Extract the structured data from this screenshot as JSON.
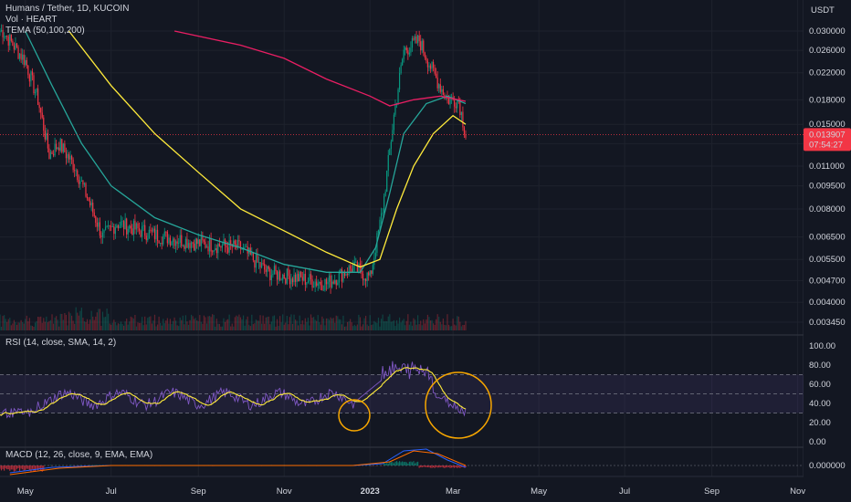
{
  "legend": {
    "symbol": "Humans / Tether, 1D, KUCOIN",
    "volume": "Vol · HEART",
    "tema": "TEMA (50,100,200)",
    "rsi": "RSI (14, close, SMA, 14, 2)",
    "macd": "MACD (12, 26, close, 9, EMA, EMA)"
  },
  "price_badge": {
    "price": "0.013907",
    "countdown": "07:54:27",
    "color": "#f23645"
  },
  "colors": {
    "background": "#131722",
    "up": "#089981",
    "down": "#f23645",
    "tema50": "#26a69a",
    "tema100": "#ffeb3b",
    "tema200": "#e91e63",
    "rsi_line": "#7e57c2",
    "rsi_ma": "#ffeb3b",
    "circle": "#f7a600"
  },
  "chart_data": [
    {
      "type": "candlestick",
      "quote": "USDT",
      "y_ticks": [
        "0.030000",
        "0.026000",
        "0.022000",
        "0.018000",
        "0.015000",
        "0.013000",
        "0.011000",
        "0.009500",
        "0.008000",
        "0.006500",
        "0.005500",
        "0.004700",
        "0.004000",
        "0.003450"
      ],
      "last_price": 0.013907,
      "series_points": [
        {
          "date": "2022-04-15",
          "close": 0.03
        },
        {
          "date": "2022-05-01",
          "close": 0.024
        },
        {
          "date": "2022-05-10",
          "close": 0.018
        },
        {
          "date": "2022-05-18",
          "close": 0.012
        },
        {
          "date": "2022-05-25",
          "close": 0.013
        },
        {
          "date": "2022-06-05",
          "close": 0.011
        },
        {
          "date": "2022-06-15",
          "close": 0.0085
        },
        {
          "date": "2022-06-25",
          "close": 0.0065
        },
        {
          "date": "2022-07-05",
          "close": 0.0072
        },
        {
          "date": "2022-08-01",
          "close": 0.0066
        },
        {
          "date": "2022-09-01",
          "close": 0.0062
        },
        {
          "date": "2022-10-01",
          "close": 0.006
        },
        {
          "date": "2022-10-20",
          "close": 0.005
        },
        {
          "date": "2022-11-10",
          "close": 0.0048
        },
        {
          "date": "2022-12-01",
          "close": 0.0046
        },
        {
          "date": "2022-12-20",
          "close": 0.0052
        },
        {
          "date": "2023-01-01",
          "close": 0.0048
        },
        {
          "date": "2023-01-10",
          "close": 0.008
        },
        {
          "date": "2023-01-18",
          "close": 0.016
        },
        {
          "date": "2023-01-25",
          "close": 0.026
        },
        {
          "date": "2023-02-05",
          "close": 0.028
        },
        {
          "date": "2023-02-15",
          "close": 0.022
        },
        {
          "date": "2023-02-25",
          "close": 0.018
        },
        {
          "date": "2023-03-05",
          "close": 0.018
        },
        {
          "date": "2023-03-10",
          "close": 0.0139
        }
      ]
    },
    {
      "type": "line",
      "name": "RSI (14, close, SMA, 14, 2)",
      "y_ticks": [
        "100.00",
        "80.00",
        "60.00",
        "40.00",
        "20.00",
        "0.00"
      ],
      "bands": [
        30,
        50,
        70
      ],
      "ylim": [
        0,
        100
      ]
    },
    {
      "type": "line",
      "name": "MACD (12, 26, close, 9, EMA, EMA)",
      "y_ticks": [
        "0.000000"
      ]
    }
  ],
  "time_axis": [
    {
      "label": "May",
      "bold": false
    },
    {
      "label": "Jul",
      "bold": false
    },
    {
      "label": "Sep",
      "bold": false
    },
    {
      "label": "Nov",
      "bold": false
    },
    {
      "label": "2023",
      "bold": true
    },
    {
      "label": "Mar",
      "bold": false
    },
    {
      "label": "May",
      "bold": false
    },
    {
      "label": "Jul",
      "bold": false
    },
    {
      "label": "Sep",
      "bold": false
    },
    {
      "label": "Nov",
      "bold": false
    }
  ]
}
